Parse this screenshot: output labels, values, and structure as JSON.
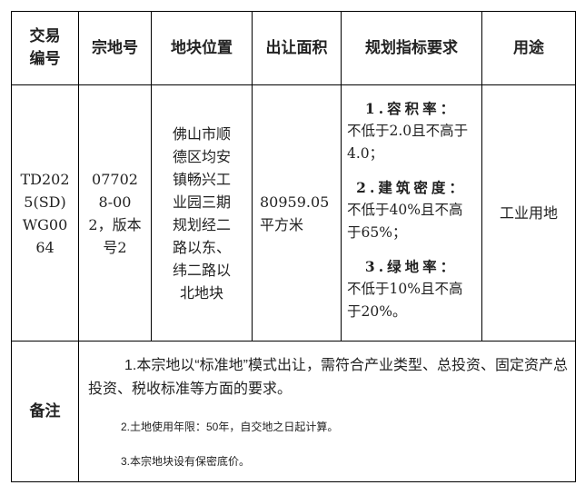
{
  "headers": [
    "交易编号",
    "宗地号",
    "地块位置",
    "出让面积",
    "规划指标要求",
    "用途"
  ],
  "row": {
    "trade_no": "TD2025(SD)WG0064",
    "parcel_no": "077028-002，版本号2",
    "location": "佛山市顺德区均安镇畅兴工业园三期规划经二路以东、纬二路以北地块",
    "area": "80959.05平方米",
    "requirements": [
      {
        "title": "1.容积率：",
        "text": "不低于2.0且不高于4.0；"
      },
      {
        "title": "2.建筑密度：",
        "text": "不低于40%且不高于65%；"
      },
      {
        "title": "3.绿地率：",
        "text": "不低于10%且不高于20%。"
      }
    ],
    "use": "工业用地"
  },
  "notes_label": "备注",
  "notes": [
    "1.本宗地以“标准地”模式出让，需符合产业类型、总投资、固定资产总投资、税收标准等方面的要求。",
    "2.土地使用年限：50年，自交地之日起计算。",
    "3.本宗地块设有保密底价。"
  ]
}
